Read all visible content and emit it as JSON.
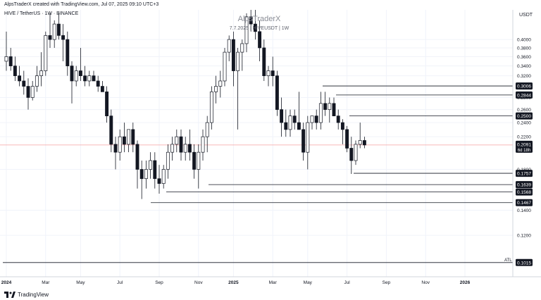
{
  "header": {
    "credit": "AlpsTraderX created with TradingView.com, Jul 07, 2025 09:10 UTC+3",
    "symbol_line": "HIVE / TetherUS · 1W · BINANCE",
    "currency": "USDT"
  },
  "watermark": {
    "title": "AlpsTraderX",
    "subtitle": "7.7.2025 | HIVEUSDT | 1W"
  },
  "branding": {
    "logo_text": "TradingView",
    "logo_icon": "tradingview-logo-icon"
  },
  "colors": {
    "up": "#ffffff",
    "down": "#131722",
    "grid": "#f0f3fa",
    "current_line": "#f7a1a1",
    "label_bg": "#131722"
  },
  "chart_data": {
    "type": "candlestick",
    "timeframe": "1W",
    "y_scale": "log",
    "ylim": [
      0.093,
      0.48
    ],
    "y_ticks": [
      0.4,
      0.38,
      0.36,
      0.34,
      0.32,
      0.28,
      0.26,
      0.24,
      0.22,
      0.18,
      0.14,
      0.12
    ],
    "x_ticks": [
      "2024",
      "Mar",
      "May",
      "Jul",
      "Sep",
      "Nov",
      "2025",
      "Mar",
      "May",
      "Jul",
      "Sep",
      "Nov",
      "2026"
    ],
    "current_price": {
      "value": "0.2091",
      "countdown": "6d 18h"
    },
    "levels": [
      {
        "value": 0.3006,
        "label": "0.3006"
      },
      {
        "value": 0.2844,
        "label": "0.2844"
      },
      {
        "value": 0.25,
        "label": "0.2500"
      },
      {
        "value": 0.1757,
        "label": "0.1757"
      },
      {
        "value": 0.1639,
        "label": "0.1639"
      },
      {
        "value": 0.1568,
        "label": "0.1568"
      },
      {
        "value": 0.1467,
        "label": "0.1467"
      },
      {
        "value": 0.1015,
        "label": "0.1015",
        "tag": "ATL"
      }
    ],
    "candles": [
      [
        0.35,
        0.42,
        0.33,
        0.36
      ],
      [
        0.36,
        0.38,
        0.33,
        0.34
      ],
      [
        0.34,
        0.36,
        0.31,
        0.32
      ],
      [
        0.32,
        0.34,
        0.3,
        0.31
      ],
      [
        0.31,
        0.33,
        0.285,
        0.3
      ],
      [
        0.3,
        0.315,
        0.26,
        0.28
      ],
      [
        0.28,
        0.31,
        0.275,
        0.3
      ],
      [
        0.3,
        0.34,
        0.29,
        0.32
      ],
      [
        0.32,
        0.37,
        0.3,
        0.33
      ],
      [
        0.33,
        0.42,
        0.32,
        0.41
      ],
      [
        0.41,
        0.47,
        0.38,
        0.4
      ],
      [
        0.4,
        0.45,
        0.38,
        0.44
      ],
      [
        0.44,
        0.47,
        0.4,
        0.41
      ],
      [
        0.41,
        0.44,
        0.35,
        0.4
      ],
      [
        0.4,
        0.42,
        0.32,
        0.34
      ],
      [
        0.34,
        0.35,
        0.27,
        0.31
      ],
      [
        0.31,
        0.34,
        0.3,
        0.33
      ],
      [
        0.33,
        0.38,
        0.31,
        0.32
      ],
      [
        0.32,
        0.34,
        0.3,
        0.31
      ],
      [
        0.31,
        0.33,
        0.3,
        0.32
      ],
      [
        0.32,
        0.33,
        0.31,
        0.31
      ],
      [
        0.31,
        0.32,
        0.29,
        0.3
      ],
      [
        0.3,
        0.31,
        0.29,
        0.29
      ],
      [
        0.29,
        0.3,
        0.24,
        0.25
      ],
      [
        0.25,
        0.26,
        0.2,
        0.21
      ],
      [
        0.21,
        0.22,
        0.18,
        0.2
      ],
      [
        0.2,
        0.23,
        0.19,
        0.22
      ],
      [
        0.22,
        0.24,
        0.2,
        0.21
      ],
      [
        0.21,
        0.23,
        0.2,
        0.23
      ],
      [
        0.23,
        0.24,
        0.2,
        0.21
      ],
      [
        0.21,
        0.215,
        0.16,
        0.18
      ],
      [
        0.18,
        0.19,
        0.15,
        0.17
      ],
      [
        0.17,
        0.19,
        0.16,
        0.18
      ],
      [
        0.18,
        0.2,
        0.17,
        0.19
      ],
      [
        0.19,
        0.2,
        0.16,
        0.17
      ],
      [
        0.17,
        0.185,
        0.155,
        0.165
      ],
      [
        0.165,
        0.185,
        0.16,
        0.18
      ],
      [
        0.18,
        0.21,
        0.17,
        0.2
      ],
      [
        0.2,
        0.22,
        0.19,
        0.21
      ],
      [
        0.21,
        0.23,
        0.2,
        0.22
      ],
      [
        0.22,
        0.23,
        0.19,
        0.2
      ],
      [
        0.2,
        0.22,
        0.19,
        0.21
      ],
      [
        0.21,
        0.23,
        0.19,
        0.2
      ],
      [
        0.2,
        0.21,
        0.17,
        0.18
      ],
      [
        0.18,
        0.21,
        0.16,
        0.2
      ],
      [
        0.2,
        0.23,
        0.19,
        0.22
      ],
      [
        0.22,
        0.25,
        0.2,
        0.24
      ],
      [
        0.24,
        0.3,
        0.23,
        0.29
      ],
      [
        0.29,
        0.32,
        0.27,
        0.3
      ],
      [
        0.3,
        0.33,
        0.28,
        0.31
      ],
      [
        0.31,
        0.38,
        0.3,
        0.37
      ],
      [
        0.37,
        0.41,
        0.35,
        0.4
      ],
      [
        0.4,
        0.42,
        0.3,
        0.33
      ],
      [
        0.33,
        0.38,
        0.23,
        0.37
      ],
      [
        0.37,
        0.4,
        0.33,
        0.39
      ],
      [
        0.39,
        0.47,
        0.37,
        0.46
      ],
      [
        0.46,
        0.48,
        0.42,
        0.44
      ],
      [
        0.44,
        0.48,
        0.4,
        0.42
      ],
      [
        0.42,
        0.45,
        0.35,
        0.38
      ],
      [
        0.38,
        0.4,
        0.31,
        0.32
      ],
      [
        0.32,
        0.34,
        0.3,
        0.33
      ],
      [
        0.33,
        0.36,
        0.3,
        0.32
      ],
      [
        0.32,
        0.33,
        0.25,
        0.26
      ],
      [
        0.26,
        0.28,
        0.22,
        0.24
      ],
      [
        0.24,
        0.26,
        0.22,
        0.23
      ],
      [
        0.23,
        0.26,
        0.22,
        0.25
      ],
      [
        0.25,
        0.26,
        0.23,
        0.24
      ],
      [
        0.24,
        0.29,
        0.23,
        0.23
      ],
      [
        0.23,
        0.24,
        0.19,
        0.2
      ],
      [
        0.2,
        0.25,
        0.18,
        0.24
      ],
      [
        0.24,
        0.25,
        0.23,
        0.25
      ],
      [
        0.25,
        0.26,
        0.23,
        0.24
      ],
      [
        0.24,
        0.29,
        0.23,
        0.27
      ],
      [
        0.27,
        0.29,
        0.25,
        0.26
      ],
      [
        0.26,
        0.28,
        0.24,
        0.27
      ],
      [
        0.27,
        0.28,
        0.25,
        0.25
      ],
      [
        0.25,
        0.26,
        0.23,
        0.24
      ],
      [
        0.24,
        0.245,
        0.21,
        0.23
      ],
      [
        0.23,
        0.235,
        0.2,
        0.205
      ],
      [
        0.205,
        0.22,
        0.175,
        0.19
      ],
      [
        0.19,
        0.215,
        0.185,
        0.21
      ],
      [
        0.21,
        0.24,
        0.205,
        0.215
      ],
      [
        0.215,
        0.22,
        0.205,
        0.2091
      ]
    ]
  }
}
